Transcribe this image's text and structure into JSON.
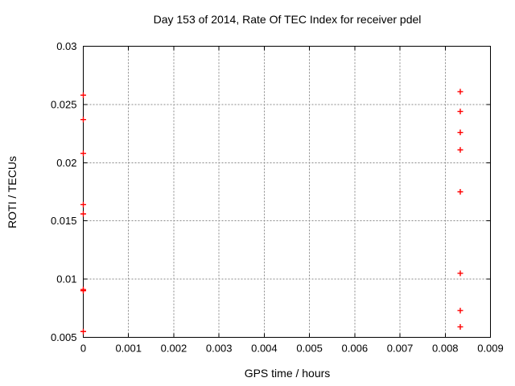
{
  "chart_data": {
    "type": "scatter",
    "title": "Day 153 of 2014, Rate Of TEC Index for receiver pdel",
    "xlabel": "GPS time / hours",
    "ylabel": "ROTI / TECUs",
    "xlim": [
      0,
      0.009
    ],
    "ylim": [
      0.005,
      0.03
    ],
    "x_tick_labels": [
      "0",
      "0.001",
      "0.002",
      "0.003",
      "0.004",
      "0.005",
      "0.006",
      "0.007",
      "0.008",
      "0.009"
    ],
    "y_tick_labels": [
      "0.005",
      "0.01",
      "0.015",
      "0.02",
      "0.025",
      "0.03"
    ],
    "grid": true,
    "legend": "none",
    "marker": "plus",
    "colors": {
      "marker": "#ff0000",
      "border": "#000000",
      "grid": "#8a8a8a",
      "text": "#000000",
      "background": "#ffffff"
    },
    "series": [
      {
        "name": "ROTI",
        "points": [
          {
            "x": 0,
            "y": 0.0258
          },
          {
            "x": 0,
            "y": 0.0237
          },
          {
            "x": 0,
            "y": 0.0208
          },
          {
            "x": 0,
            "y": 0.0164
          },
          {
            "x": 0,
            "y": 0.0156
          },
          {
            "x": 0,
            "y": 0.0091
          },
          {
            "x": 0,
            "y": 0.009
          },
          {
            "x": 0,
            "y": 0.0055
          },
          {
            "x": 0.008333,
            "y": 0.0261
          },
          {
            "x": 0.008333,
            "y": 0.0244
          },
          {
            "x": 0.008333,
            "y": 0.0226
          },
          {
            "x": 0.008333,
            "y": 0.0211
          },
          {
            "x": 0.008333,
            "y": 0.0175
          },
          {
            "x": 0.008333,
            "y": 0.0105
          },
          {
            "x": 0.008333,
            "y": 0.0073
          },
          {
            "x": 0.008333,
            "y": 0.0059
          }
        ]
      }
    ]
  }
}
